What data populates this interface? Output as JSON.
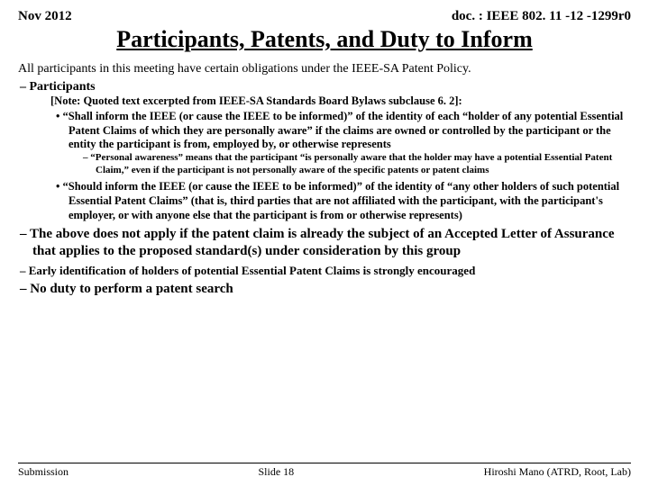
{
  "header": {
    "date": "Nov 2012",
    "doc": "doc. : IEEE 802. 11 -12 -1299r0"
  },
  "title": "Participants, Patents, and Duty to Inform",
  "intro": "All participants in this meeting have certain obligations under the IEEE-SA Patent Policy.",
  "l1": {
    "participants": "Participants",
    "note": "[Note: Quoted text excerpted from IEEE-SA Standards Board Bylaws subclause 6. 2]:",
    "b1": "“Shall inform the IEEE (or cause the IEEE to be informed)” of the identity of each “holder of any potential Essential Patent Claims of which they are personally aware” if the claims are owned or controlled by the participant or the entity the participant is from, employed by, or otherwise represents",
    "b1a": "“Personal awareness” means that the participant “is personally aware that the holder may have a potential Essential Patent Claim,” even if the participant is not personally aware of the specific patents or patent claims",
    "b2": "“Should inform the IEEE (or cause the IEEE to be informed)” of the identity of “any other holders of such potential Essential Patent Claims” (that is, third parties that are not affiliated with the participant, with the participant's employer, or with anyone else that the participant is from or otherwise represents)",
    "d2": "The above does not apply if the patent claim is already the subject of an Accepted Letter of Assurance that applies to the proposed standard(s) under consideration by this group",
    "d3": "Early identification of holders of potential Essential Patent Claims is strongly encouraged",
    "d4": "No duty to perform a patent search"
  },
  "footer": {
    "left": "Submission",
    "center": "Slide 18",
    "right": "Hiroshi Mano (ATRD, Root, Lab)"
  },
  "style": {
    "bg": "#ffffff",
    "text": "#000000",
    "title_fontsize": 26,
    "body_fontsize": 14,
    "bullet_fontsize": 12.5,
    "subbullet_fontsize": 11,
    "footer_fontsize": 12,
    "font_family": "Times New Roman"
  }
}
